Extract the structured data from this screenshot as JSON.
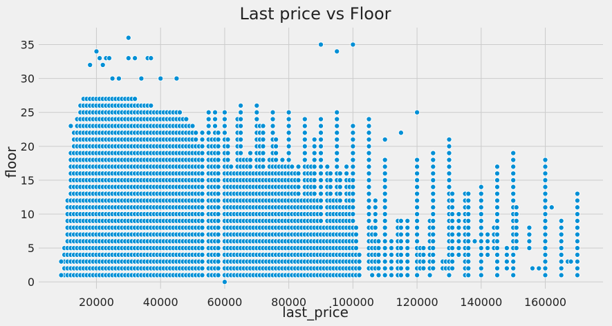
{
  "chart_data": {
    "type": "scatter",
    "title": "Last price vs Floor",
    "xlabel": "last_price",
    "ylabel": "floor",
    "xlim": [
      2000,
      178000
    ],
    "ylim": [
      -1,
      37.5
    ],
    "xticks": [
      20000,
      40000,
      60000,
      80000,
      100000,
      120000,
      140000,
      160000
    ],
    "yticks": [
      0,
      5,
      10,
      15,
      20,
      25,
      30,
      35
    ],
    "grid": true,
    "marker_color": "#008fd5",
    "background": "#f0f0f0",
    "dense_region": {
      "x_start": 10000,
      "x_end": 52000,
      "x_step": 1000,
      "floor_profile": [
        {
          "x": 10000,
          "max_floor": 5
        },
        {
          "x": 12000,
          "max_floor": 19
        },
        {
          "x": 14000,
          "max_floor": 24
        },
        {
          "x": 16000,
          "max_floor": 27
        },
        {
          "x": 20000,
          "max_floor": 27
        },
        {
          "x": 25000,
          "max_floor": 27
        },
        {
          "x": 30000,
          "max_floor": 27
        },
        {
          "x": 35000,
          "max_floor": 26
        },
        {
          "x": 40000,
          "max_floor": 25
        },
        {
          "x": 45000,
          "max_floor": 25
        },
        {
          "x": 50000,
          "max_floor": 23
        },
        {
          "x": 52000,
          "max_floor": 20
        }
      ]
    },
    "sparse_columns": [
      [
        53000,
        1,
        22
      ],
      [
        55000,
        1,
        25
      ],
      [
        56000,
        1,
        21
      ],
      [
        57000,
        1,
        25
      ],
      [
        58000,
        1,
        22
      ],
      [
        60000,
        0,
        25
      ],
      [
        61000,
        1,
        21
      ],
      [
        62000,
        1,
        17
      ],
      [
        63000,
        1,
        16
      ],
      [
        64000,
        1,
        24
      ],
      [
        65000,
        1,
        26
      ],
      [
        66000,
        1,
        18
      ],
      [
        67000,
        1,
        18
      ],
      [
        68000,
        1,
        19
      ],
      [
        69000,
        1,
        16
      ],
      [
        70000,
        1,
        26
      ],
      [
        71000,
        1,
        23
      ],
      [
        72000,
        1,
        23
      ],
      [
        73000,
        1,
        16
      ],
      [
        74000,
        1,
        18
      ],
      [
        75000,
        1,
        25
      ],
      [
        76000,
        1,
        21
      ],
      [
        77000,
        1,
        17
      ],
      [
        78000,
        1,
        18
      ],
      [
        79000,
        1,
        17
      ],
      [
        80000,
        1,
        25
      ],
      [
        81000,
        1,
        17
      ],
      [
        82000,
        1,
        16
      ],
      [
        83000,
        1,
        17
      ],
      [
        84000,
        1,
        12
      ],
      [
        85000,
        1,
        24
      ],
      [
        86000,
        1,
        17
      ],
      [
        87000,
        1,
        17
      ],
      [
        88000,
        1,
        21
      ],
      [
        89000,
        1,
        12
      ],
      [
        90000,
        1,
        24
      ],
      [
        91000,
        1,
        8
      ],
      [
        92000,
        1,
        17
      ],
      [
        93000,
        1,
        16
      ],
      [
        94000,
        1,
        12
      ],
      [
        95000,
        1,
        25
      ],
      [
        96000,
        1,
        16
      ],
      [
        97000,
        1,
        11
      ],
      [
        98000,
        1,
        17
      ],
      [
        99000,
        1,
        15
      ],
      [
        100000,
        1,
        23
      ],
      [
        101000,
        1,
        8
      ],
      [
        102000,
        1,
        4
      ],
      [
        105000,
        2,
        24
      ],
      [
        106000,
        1,
        8
      ],
      [
        107000,
        2,
        12
      ],
      [
        108000,
        1,
        6
      ],
      [
        110000,
        1,
        18
      ],
      [
        112000,
        1,
        6
      ],
      [
        114000,
        1,
        9
      ],
      [
        115000,
        1,
        9
      ],
      [
        117000,
        1,
        9
      ],
      [
        120000,
        1,
        18
      ],
      [
        121000,
        2,
        5
      ],
      [
        122000,
        2,
        5
      ],
      [
        124000,
        1,
        9
      ],
      [
        125000,
        2,
        19
      ],
      [
        128000,
        2,
        3
      ],
      [
        129000,
        2,
        3
      ],
      [
        130000,
        1,
        21
      ],
      [
        131000,
        2,
        13
      ],
      [
        133000,
        4,
        10
      ],
      [
        135000,
        1,
        13
      ],
      [
        136000,
        1,
        13
      ],
      [
        138000,
        6,
        6
      ],
      [
        140000,
        1,
        14
      ],
      [
        142000,
        4,
        7
      ],
      [
        144000,
        5,
        8
      ],
      [
        145000,
        1,
        17
      ],
      [
        148000,
        2,
        5
      ],
      [
        150000,
        1,
        19
      ],
      [
        151000,
        5,
        11
      ],
      [
        155000,
        5,
        8
      ],
      [
        156000,
        2,
        2
      ],
      [
        158000,
        2,
        2
      ],
      [
        160000,
        1,
        18
      ],
      [
        162000,
        11,
        11
      ],
      [
        165000,
        1,
        9
      ],
      [
        167000,
        3,
        3
      ],
      [
        168000,
        3,
        3
      ],
      [
        170000,
        1,
        13
      ]
    ],
    "outliers": [
      {
        "x": 9000,
        "y": 1
      },
      {
        "x": 9000,
        "y": 3
      },
      {
        "x": 12000,
        "y": 23
      },
      {
        "x": 18000,
        "y": 32
      },
      {
        "x": 20000,
        "y": 34
      },
      {
        "x": 21000,
        "y": 33
      },
      {
        "x": 22000,
        "y": 32
      },
      {
        "x": 23000,
        "y": 33
      },
      {
        "x": 24000,
        "y": 33
      },
      {
        "x": 25000,
        "y": 30
      },
      {
        "x": 27000,
        "y": 30
      },
      {
        "x": 30000,
        "y": 36
      },
      {
        "x": 30000,
        "y": 33
      },
      {
        "x": 32000,
        "y": 33
      },
      {
        "x": 34000,
        "y": 30
      },
      {
        "x": 36000,
        "y": 33
      },
      {
        "x": 37000,
        "y": 33
      },
      {
        "x": 40000,
        "y": 30
      },
      {
        "x": 45000,
        "y": 30
      },
      {
        "x": 90000,
        "y": 35
      },
      {
        "x": 95000,
        "y": 34
      },
      {
        "x": 100000,
        "y": 35
      },
      {
        "x": 115000,
        "y": 22
      },
      {
        "x": 120000,
        "y": 25
      },
      {
        "x": 105000,
        "y": 20
      },
      {
        "x": 110000,
        "y": 21
      }
    ]
  }
}
